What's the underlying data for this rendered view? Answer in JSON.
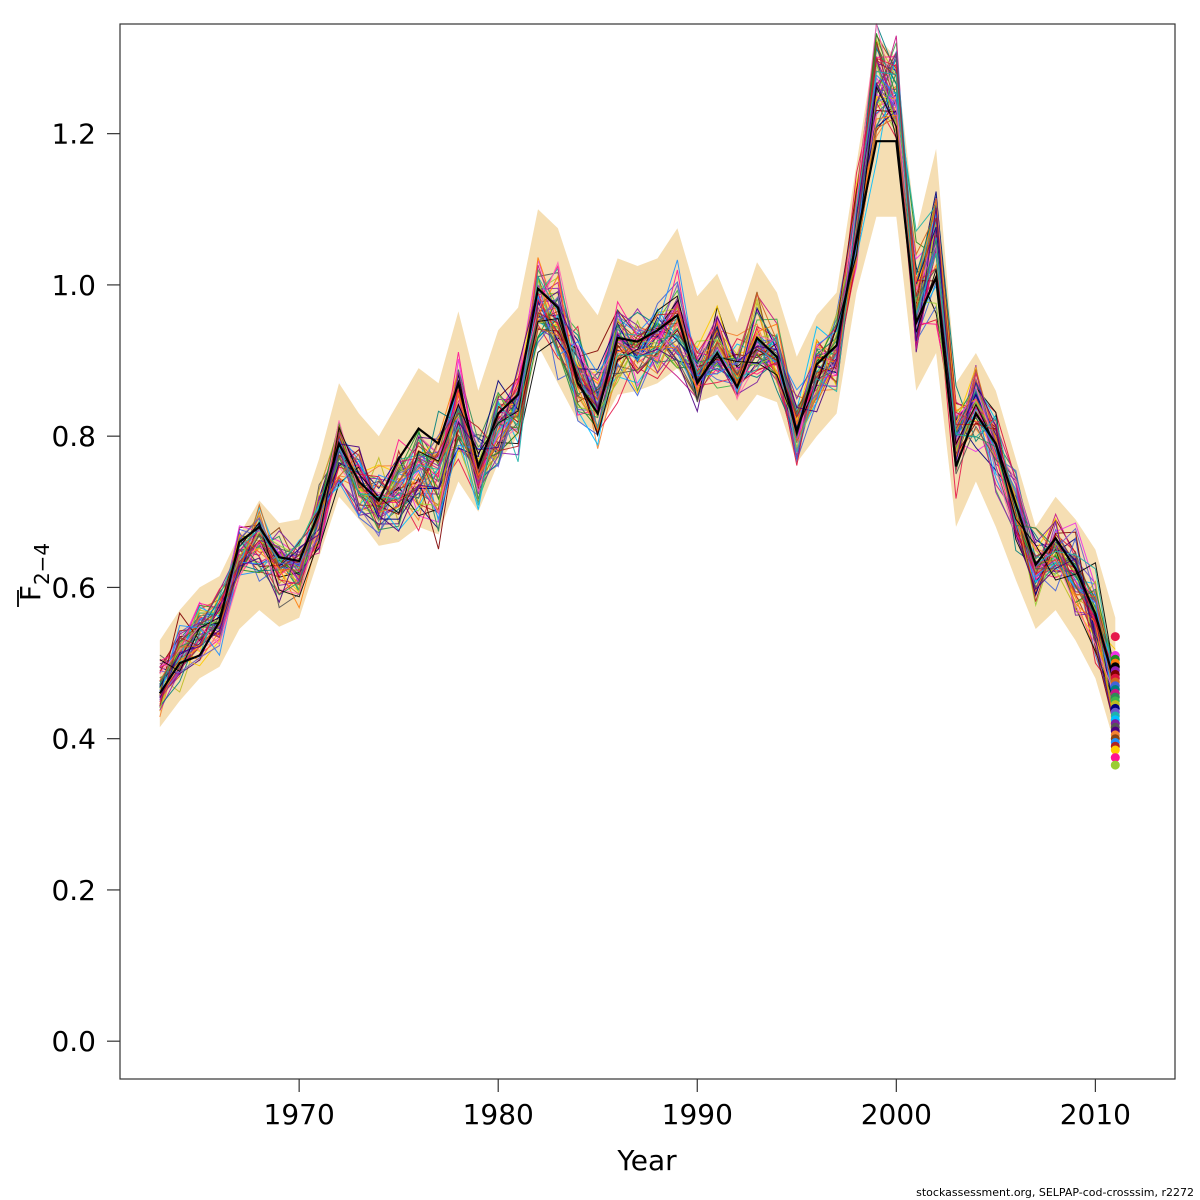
{
  "chart_data": {
    "type": "line",
    "xlabel": "Year",
    "ylabel": "F",
    "ylabel_subscript": "2−4",
    "xlim": [
      1961,
      2014
    ],
    "ylim": [
      -0.05,
      1.345
    ],
    "x_ticks": [
      1970,
      1980,
      1990,
      2000,
      2010
    ],
    "y_ticks": [
      "0.0",
      "0.2",
      "0.4",
      "0.6",
      "0.8",
      "1.0",
      "1.2"
    ],
    "grid": false,
    "legend": "none",
    "band_color": "#f5deb3",
    "years": [
      1963,
      1964,
      1965,
      1966,
      1967,
      1968,
      1969,
      1970,
      1971,
      1972,
      1973,
      1974,
      1975,
      1976,
      1977,
      1978,
      1979,
      1980,
      1981,
      1982,
      1983,
      1984,
      1985,
      1986,
      1987,
      1988,
      1989,
      1990,
      1991,
      1992,
      1993,
      1994,
      1995,
      1996,
      1997,
      1998,
      1999,
      2000,
      2001,
      2002,
      2003,
      2004,
      2005,
      2006,
      2007,
      2008,
      2009,
      2010,
      2011
    ],
    "median": [
      0.47,
      0.51,
      0.54,
      0.56,
      0.64,
      0.66,
      0.63,
      0.62,
      0.69,
      0.78,
      0.74,
      0.71,
      0.73,
      0.75,
      0.74,
      0.83,
      0.75,
      0.81,
      0.84,
      0.97,
      0.96,
      0.88,
      0.85,
      0.92,
      0.91,
      0.93,
      0.95,
      0.88,
      0.92,
      0.88,
      0.93,
      0.9,
      0.81,
      0.88,
      0.91,
      1.08,
      1.26,
      1.25,
      0.97,
      1.06,
      0.8,
      0.85,
      0.79,
      0.7,
      0.62,
      0.65,
      0.62,
      0.57,
      0.46
    ],
    "band_lower": [
      0.415,
      0.45,
      0.48,
      0.495,
      0.545,
      0.57,
      0.548,
      0.56,
      0.64,
      0.72,
      0.69,
      0.655,
      0.66,
      0.68,
      0.67,
      0.74,
      0.7,
      0.765,
      0.8,
      0.92,
      0.87,
      0.82,
      0.805,
      0.855,
      0.86,
      0.87,
      0.89,
      0.845,
      0.855,
      0.82,
      0.855,
      0.845,
      0.765,
      0.8,
      0.83,
      0.99,
      1.09,
      1.09,
      0.86,
      0.91,
      0.68,
      0.74,
      0.68,
      0.61,
      0.545,
      0.57,
      0.53,
      0.48,
      0.39
    ],
    "band_upper": [
      0.53,
      0.57,
      0.6,
      0.615,
      0.67,
      0.715,
      0.685,
      0.69,
      0.77,
      0.87,
      0.83,
      0.8,
      0.845,
      0.89,
      0.87,
      0.965,
      0.86,
      0.94,
      0.97,
      1.1,
      1.075,
      0.995,
      0.96,
      1.035,
      1.025,
      1.035,
      1.075,
      0.985,
      1.015,
      0.95,
      1.03,
      0.99,
      0.905,
      0.96,
      0.99,
      1.16,
      1.33,
      1.3,
      1.07,
      1.18,
      0.87,
      0.91,
      0.86,
      0.77,
      0.68,
      0.72,
      0.69,
      0.65,
      0.56
    ],
    "best_estimate": [
      0.46,
      0.5,
      0.51,
      0.555,
      0.66,
      0.68,
      0.64,
      0.635,
      0.7,
      0.79,
      0.74,
      0.715,
      0.77,
      0.81,
      0.79,
      0.87,
      0.76,
      0.83,
      0.855,
      0.995,
      0.97,
      0.87,
      0.83,
      0.93,
      0.925,
      0.94,
      0.96,
      0.87,
      0.91,
      0.865,
      0.93,
      0.905,
      0.805,
      0.895,
      0.92,
      1.06,
      1.19,
      1.19,
      0.95,
      1.01,
      0.76,
      0.83,
      0.79,
      0.71,
      0.63,
      0.665,
      0.625,
      0.565,
      0.47
    ],
    "replicate_count": 60,
    "replicate_colors": [
      "#e6194b",
      "#3cb44b",
      "#ffcc00",
      "#4363d8",
      "#f58231",
      "#911eb4",
      "#00bfff",
      "#f032e6",
      "#bcbd22",
      "#ff1493",
      "#008080",
      "#8b4513",
      "#800000",
      "#7a1fa2",
      "#228b22",
      "#000080",
      "#9acd32",
      "#c71585",
      "#1e90ff",
      "#dc143c",
      "#555555",
      "#ff7f0e",
      "#6a5acd",
      "#ff69b4",
      "#2e8b57",
      "#b22222",
      "#d2691e",
      "#4b0082",
      "#000000",
      "#20b2aa"
    ],
    "terminal_points": [
      0.535,
      0.51,
      0.505,
      0.5,
      0.495,
      0.49,
      0.485,
      0.48,
      0.475,
      0.47,
      0.465,
      0.46,
      0.455,
      0.45,
      0.445,
      0.44,
      0.435,
      0.43,
      0.425,
      0.42,
      0.415,
      0.41,
      0.405,
      0.4,
      0.395,
      0.39,
      0.385,
      0.375,
      0.365
    ],
    "footer": "stockassessment.org, SELPAP-cod-crosssim, r2272"
  }
}
